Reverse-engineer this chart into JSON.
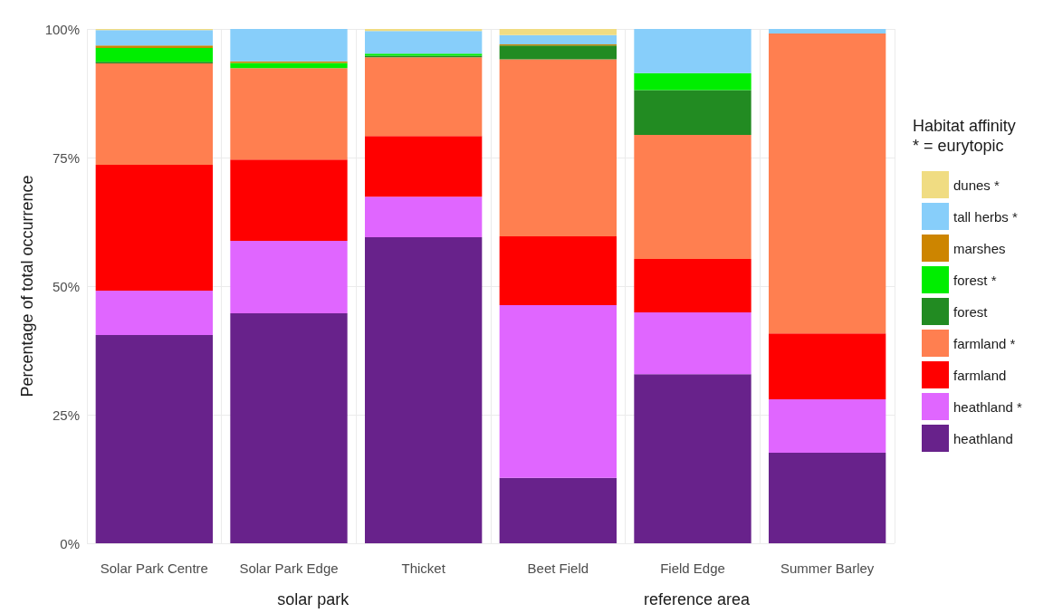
{
  "chart_data": {
    "type": "bar",
    "stacked": true,
    "ylabel": "Percentage of total occurrence",
    "legend_title": "Habitat affinity\n* = eurytopic",
    "categories": [
      "Solar Park Centre",
      "Solar Park Edge",
      "Thicket",
      "Beet Field",
      "Field Edge",
      "Summer Barley"
    ],
    "series": [
      {
        "name": "heathland",
        "color": "#68228b",
        "values": [
          40.5,
          44.7,
          59.5,
          12.7,
          32.9,
          17.6
        ]
      },
      {
        "name": "heathland *",
        "color": "#e066ff",
        "values": [
          8.6,
          14.1,
          7.9,
          33.6,
          12.0,
          10.4
        ]
      },
      {
        "name": "farmland",
        "color": "#ff0000",
        "values": [
          24.5,
          15.8,
          11.8,
          13.4,
          10.4,
          12.8
        ]
      },
      {
        "name": "farmland *",
        "color": "#ff7f50",
        "values": [
          19.7,
          17.8,
          15.3,
          34.4,
          24.1,
          58.3
        ]
      },
      {
        "name": "forest",
        "color": "#228b22",
        "values": [
          0.3,
          0,
          0.3,
          2.7,
          8.7,
          0
        ]
      },
      {
        "name": "forest *",
        "color": "#00ee00",
        "values": [
          2.7,
          1.0,
          0.4,
          0,
          3.3,
          0
        ]
      },
      {
        "name": "marshes",
        "color": "#cd8500",
        "values": [
          0.5,
          0.3,
          0,
          0.2,
          0,
          0
        ]
      },
      {
        "name": "tall herbs *",
        "color": "#87cefa",
        "values": [
          3.0,
          6.3,
          4.4,
          1.8,
          8.6,
          0.9
        ]
      },
      {
        "name": "dunes *",
        "color": "#f0dc82",
        "values": [
          0.2,
          0,
          0.4,
          1.2,
          0,
          0
        ]
      }
    ],
    "ylim": [
      0,
      100
    ],
    "yticks": [
      {
        "value": 0,
        "label": "0%"
      },
      {
        "value": 25,
        "label": "25%"
      },
      {
        "value": 50,
        "label": "50%"
      },
      {
        "value": 75,
        "label": "75%"
      },
      {
        "value": 100,
        "label": "100%"
      }
    ],
    "grid": true,
    "legend": "right",
    "annotations": [
      "solar park",
      "reference area"
    ]
  }
}
